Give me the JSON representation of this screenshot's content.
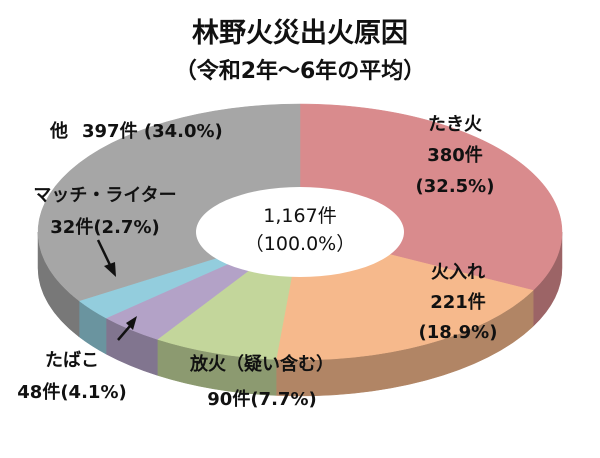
{
  "chart_data": {
    "type": "pie",
    "title": "林野火災出火原因",
    "subtitle": "（令和2年～6年の平均）",
    "total_line1": "1,167件",
    "total_line2": "（100.0%）",
    "slices": [
      {
        "key": "takibi",
        "name": "たき火",
        "count": 380,
        "percent": 32.5,
        "color": "#d98b8d",
        "count_label": "380件",
        "pct_label": "(32.5%)"
      },
      {
        "key": "hiire",
        "name": "火入れ",
        "count": 221,
        "percent": 18.9,
        "color": "#f6b98c",
        "count_label": "221件",
        "pct_label": "(18.9%)"
      },
      {
        "key": "houka",
        "name": "放火（疑い含む）",
        "count": 90,
        "percent": 7.7,
        "color": "#c3d69b",
        "value_label": "90件(7.7%)"
      },
      {
        "key": "tabako",
        "name": "たばこ",
        "count": 48,
        "percent": 4.1,
        "color": "#b3a2c7",
        "value_label": "48件(4.1%)"
      },
      {
        "key": "match",
        "name": "マッチ・ライター",
        "count": 32,
        "percent": 2.7,
        "color": "#93cddd",
        "value_label": "32件(2.7%)"
      },
      {
        "key": "other",
        "name": "他",
        "count": 397,
        "percent": 34.0,
        "color": "#a6a6a6",
        "value_label": "397件 (34.0%)"
      }
    ]
  }
}
